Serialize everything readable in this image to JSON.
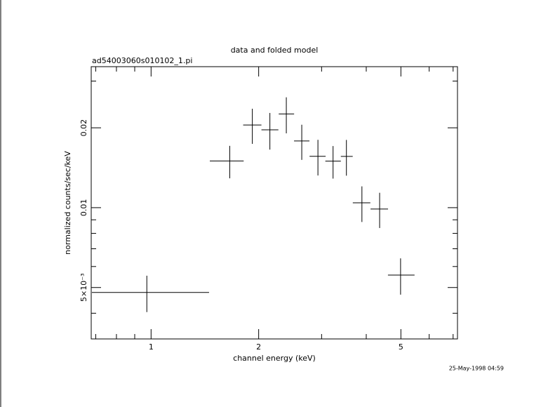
{
  "chart_data": {
    "type": "errorbar",
    "title": "data and folded model",
    "subtitle": "ad54003060s010102_1.pi",
    "xlabel": "channel energy (keV)",
    "ylabel": "normalized counts/sec/keV",
    "timestamp": "25-May-1998 04:59",
    "xscale": "log",
    "yscale": "log",
    "xlim": [
      0.68,
      7.2
    ],
    "ylim": [
      0.0032,
      0.034
    ],
    "xticks": [
      1,
      2,
      5
    ],
    "yticks": [
      {
        "value": 0.005,
        "label": "5×10⁻³"
      },
      0.01,
      0.02
    ],
    "xminor": [
      0.7,
      0.8,
      0.9,
      3,
      4,
      6,
      7
    ],
    "yminor": [
      0.004,
      0.006,
      0.007,
      0.008,
      0.009,
      0.03
    ],
    "series": [
      {
        "name": "data",
        "color": "#000000",
        "x": [
          0.973,
          1.66,
          1.92,
          2.15,
          2.39,
          2.64,
          2.93,
          3.23,
          3.52,
          3.89,
          4.36,
          4.99
        ],
        "xerr": [
          [
            0.29,
            0.48
          ],
          [
            0.2,
            0.156
          ],
          [
            0.11,
            0.116
          ],
          [
            0.114,
            0.121
          ],
          [
            0.114,
            0.123
          ],
          [
            0.128,
            0.134
          ],
          [
            0.154,
            0.149
          ],
          [
            0.157,
            0.166
          ],
          [
            0.124,
            0.146
          ],
          [
            0.222,
            0.217
          ],
          [
            0.248,
            0.243
          ],
          [
            0.39,
            0.47
          ]
        ],
        "values": [
          0.00479,
          0.015,
          0.0205,
          0.01965,
          0.02256,
          0.01784,
          0.01562,
          0.01497,
          0.0156,
          0.01043,
          0.00988,
          0.00557
        ],
        "yerr": [
          0.00075,
          0.0021,
          0.0031,
          0.0031,
          0.0035,
          0.0027,
          0.0024,
          0.0021,
          0.0024,
          0.0016,
          0.0015,
          0.00087
        ]
      }
    ]
  }
}
